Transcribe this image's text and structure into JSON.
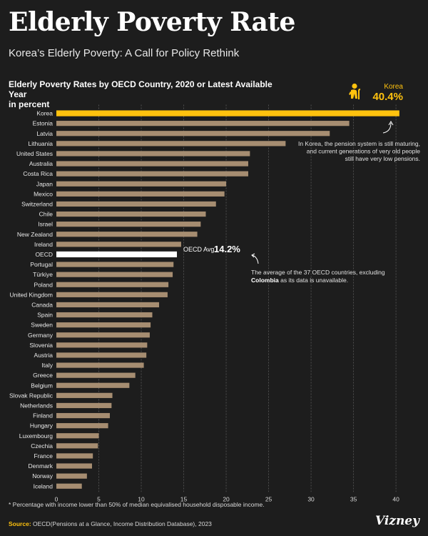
{
  "header": {
    "title": "Elderly Poverty Rate",
    "subtitle": "Korea’s Elderly Poverty: A Call for Policy Rethink"
  },
  "chart_data": {
    "type": "bar",
    "orientation": "horizontal",
    "title": "Elderly Poverty Rates by OECD Country, 2020 or Latest Available Year",
    "title_unit": "in percent",
    "categories": [
      "Korea",
      "Estonia",
      "Latvia",
      "Lithuania",
      "United States",
      "Australia",
      "Costa Rica",
      "Japan",
      "Mexico",
      "Switzerland",
      "Chile",
      "Israel",
      "New Zealand",
      "Ireland",
      "OECD",
      "Portugal",
      "Türkiye",
      "Poland",
      "United Kingdom",
      "Canada",
      "Spain",
      "Sweden",
      "Germany",
      "Slovenia",
      "Austria",
      "Italy",
      "Greece",
      "Belgium",
      "Slovak Republic",
      "Netherlands",
      "Finland",
      "Hungary",
      "Luxembourg",
      "Czechia",
      "France",
      "Denmark",
      "Norway",
      "Iceland"
    ],
    "values": [
      40.4,
      34.5,
      32.2,
      27.0,
      22.8,
      22.6,
      22.6,
      20.0,
      19.8,
      18.8,
      17.6,
      17.0,
      16.6,
      14.7,
      14.2,
      13.8,
      13.7,
      13.2,
      13.1,
      12.1,
      11.3,
      11.1,
      11.0,
      10.7,
      10.6,
      10.3,
      9.3,
      8.6,
      6.6,
      6.5,
      6.3,
      6.1,
      5.0,
      4.9,
      4.3,
      4.2,
      3.6,
      3.0
    ],
    "xticks": [
      0,
      5,
      10,
      15,
      20,
      25,
      30,
      35,
      40
    ],
    "xlim": [
      0,
      41
    ],
    "grid": true,
    "highlights": {
      "Korea": {
        "color": "#ffc20e",
        "label": "Korea",
        "value_label": "40.4%"
      },
      "OECD": {
        "color": "#ffffff",
        "label": "OECD Avg.",
        "value_label": "14.2%"
      }
    },
    "bar_color": "#a68d71"
  },
  "annotations": {
    "korea_note": [
      "In Korea, the pension system is still maturing,",
      "and current generations of very old people",
      "still have very low pensions."
    ],
    "oecd_note_line1": "The average of the 37 OECD countries, excluding",
    "oecd_note_bold": "Colombia",
    "oecd_note_line2_rest": " as its data is unavailable."
  },
  "footer": {
    "footnote": "* Percentage with income lower than 50% of median equivalised household disposable income.",
    "source_label": "Source:",
    "source_text": " OECD(Pensions at a Glance, Income Distribution Database), 2023",
    "brand": "Vizney"
  },
  "colors": {
    "background": "#1d1d1d",
    "accent": "#ffc20e",
    "bar": "#a68d71",
    "oecd": "#ffffff"
  },
  "icons": {
    "korea": "elderly-person-icon",
    "arrow": "curved-arrow-icon"
  }
}
